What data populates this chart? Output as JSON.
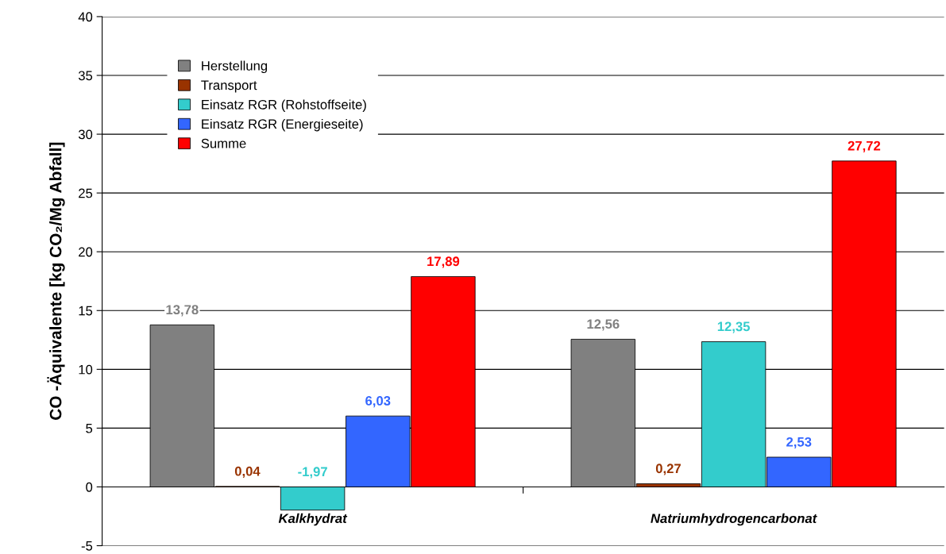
{
  "chart_data": {
    "type": "bar",
    "ylabel": "CO -Äquivalente [kg CO₂/Mg Abfall]",
    "categories": [
      "Kalkhydrat",
      "Natriumhydrogencarbonat"
    ],
    "series": [
      {
        "name": "Herstellung",
        "color": "#808080",
        "values": [
          13.78,
          12.56
        ],
        "value_labels": [
          "13,78",
          "12,56"
        ]
      },
      {
        "name": "Transport",
        "color": "#993300",
        "values": [
          0.04,
          0.27
        ],
        "value_labels": [
          "0,04",
          "0,27"
        ]
      },
      {
        "name": "Einsatz RGR (Rohstoffseite)",
        "color": "#33cccc",
        "values": [
          -1.97,
          12.35
        ],
        "value_labels": [
          "-1,97",
          "12,35"
        ]
      },
      {
        "name": "Einsatz RGR (Energieseite)",
        "color": "#3366ff",
        "values": [
          6.03,
          2.53
        ],
        "value_labels": [
          "6,03",
          "2,53"
        ]
      },
      {
        "name": "Summe",
        "color": "#ff0000",
        "values": [
          17.89,
          27.72
        ],
        "value_labels": [
          "17,89",
          "27,72"
        ]
      }
    ],
    "ylim": [
      -5,
      40
    ],
    "yticks": [
      -5,
      0,
      5,
      10,
      15,
      20,
      25,
      30,
      35,
      40
    ],
    "grid": "y",
    "legend": "top left"
  }
}
